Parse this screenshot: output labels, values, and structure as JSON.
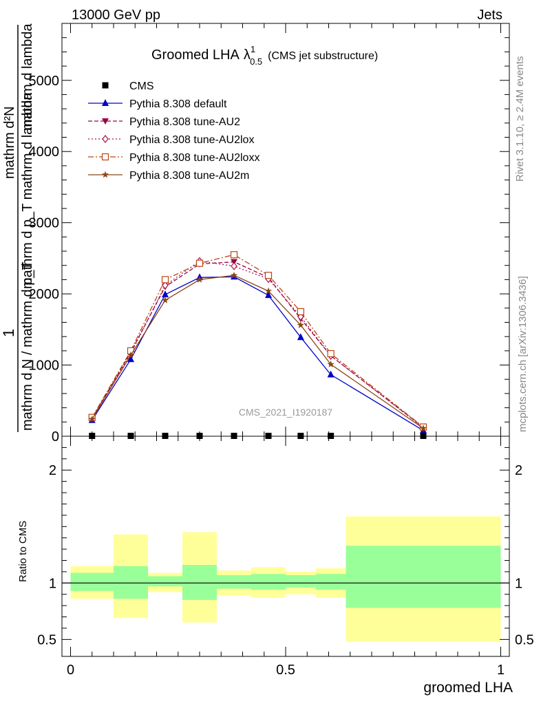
{
  "header": {
    "left": "13000 GeV pp",
    "right": "Jets"
  },
  "side_labels": {
    "rivet": "Rivet 3.1.10, ≥ 2.4M events",
    "mcplots": "mcplots.cern.ch [arXiv:1306.3436]"
  },
  "watermark": "CMS_2021_I1920187",
  "chart_data": [
    {
      "type": "line",
      "title": "Groomed LHA",
      "title_symbol": "λ",
      "title_sup": "1",
      "title_sub": "0.5",
      "subtitle": "(CMS jet substructure)",
      "ylabel_numerator": "1",
      "ylabel_denominator": "mathrm d N / mathrm d p_T",
      "ylabel_fraction": "mathrm d²N / mathrm d p_T mathrm d lambda",
      "ylabel_leftover": "mathrm d²N",
      "ylabel_leftover2": "mathrm d p_T mathrm d lambda",
      "ylim": [
        0,
        5800
      ],
      "yticks": [
        0,
        1000,
        2000,
        3000,
        4000,
        5000
      ],
      "yticklabels": [
        "0",
        "1000",
        "2000",
        "3000",
        "4000",
        "5000"
      ],
      "xlim": [
        -0.02,
        1.02
      ],
      "series": [
        {
          "name": "CMS",
          "color": "#000000",
          "marker": "square-filled",
          "line": "none",
          "x": [
            0.05,
            0.14,
            0.22,
            0.3,
            0.38,
            0.46,
            0.535,
            0.605,
            0.82
          ],
          "values": [
            5,
            5,
            5,
            5,
            5,
            5,
            5,
            5,
            5
          ]
        },
        {
          "name": "Pythia 8.308 default",
          "color": "#0000cc",
          "marker": "triangle-up",
          "line": "solid",
          "x": [
            0.05,
            0.14,
            0.22,
            0.3,
            0.38,
            0.46,
            0.535,
            0.605,
            0.82
          ],
          "values": [
            225,
            1080,
            1990,
            2230,
            2240,
            1980,
            1390,
            865,
            80
          ]
        },
        {
          "name": "Pythia 8.308 tune-AU2",
          "color": "#990044",
          "marker": "triangle-down",
          "line": "dashed",
          "x": [
            0.05,
            0.14,
            0.22,
            0.3,
            0.38,
            0.46,
            0.535,
            0.605,
            0.82
          ],
          "values": [
            250,
            1180,
            2100,
            2420,
            2450,
            2230,
            1650,
            1130,
            125
          ]
        },
        {
          "name": "Pythia 8.308 tune-AU2lox",
          "color": "#aa1144",
          "marker": "diamond-open",
          "line": "dotted",
          "x": [
            0.05,
            0.14,
            0.22,
            0.3,
            0.38,
            0.46,
            0.535,
            0.605,
            0.82
          ],
          "values": [
            255,
            1160,
            2120,
            2460,
            2390,
            2210,
            1680,
            1130,
            120
          ]
        },
        {
          "name": "Pythia 8.308 tune-AU2loxx",
          "color": "#bb4411",
          "marker": "square-open",
          "line": "dashdot",
          "x": [
            0.05,
            0.14,
            0.22,
            0.3,
            0.38,
            0.46,
            0.535,
            0.605,
            0.82
          ],
          "values": [
            265,
            1200,
            2200,
            2430,
            2550,
            2260,
            1750,
            1160,
            130
          ]
        },
        {
          "name": "Pythia 8.308 tune-AU2m",
          "color": "#8b4513",
          "marker": "star",
          "line": "solid",
          "x": [
            0.05,
            0.14,
            0.22,
            0.3,
            0.38,
            0.46,
            0.535,
            0.605,
            0.82
          ],
          "values": [
            240,
            1140,
            1910,
            2200,
            2260,
            2040,
            1560,
            1010,
            110
          ]
        }
      ],
      "legend_placement": "top-left"
    },
    {
      "type": "area",
      "ylabel": "Ratio to CMS",
      "xlabel": "groomed LHA",
      "xlim": [
        -0.02,
        1.02
      ],
      "ylim": [
        0.35,
        2.3
      ],
      "yticks": [
        0.5,
        1,
        2
      ],
      "yticklabels": [
        "0.5",
        "1",
        "2"
      ],
      "xticks": [
        0,
        0.5,
        1
      ],
      "xticklabels": [
        "0",
        "0.5",
        "1"
      ],
      "reference_line": 1,
      "bands": [
        {
          "x0": 0.0,
          "x1": 0.1,
          "stat": [
            0.93,
            1.09
          ],
          "total": [
            0.86,
            1.15
          ]
        },
        {
          "x0": 0.1,
          "x1": 0.18,
          "stat": [
            0.86,
            1.15
          ],
          "total": [
            0.69,
            1.43
          ]
        },
        {
          "x0": 0.18,
          "x1": 0.26,
          "stat": [
            0.97,
            1.06
          ],
          "total": [
            0.92,
            1.09
          ]
        },
        {
          "x0": 0.26,
          "x1": 0.34,
          "stat": [
            0.85,
            1.16
          ],
          "total": [
            0.65,
            1.45
          ]
        },
        {
          "x0": 0.34,
          "x1": 0.42,
          "stat": [
            0.95,
            1.07
          ],
          "total": [
            0.89,
            1.11
          ]
        },
        {
          "x0": 0.42,
          "x1": 0.5,
          "stat": [
            0.94,
            1.08
          ],
          "total": [
            0.87,
            1.14
          ]
        },
        {
          "x0": 0.5,
          "x1": 0.57,
          "stat": [
            0.96,
            1.07
          ],
          "total": [
            0.9,
            1.1
          ]
        },
        {
          "x0": 0.57,
          "x1": 0.64,
          "stat": [
            0.94,
            1.08
          ],
          "total": [
            0.87,
            1.13
          ]
        },
        {
          "x0": 0.64,
          "x1": 1.0,
          "stat": [
            0.78,
            1.33
          ],
          "total": [
            0.48,
            1.59
          ]
        }
      ],
      "colors": {
        "stat": "#99ff99",
        "total": "#ffff99"
      }
    }
  ]
}
